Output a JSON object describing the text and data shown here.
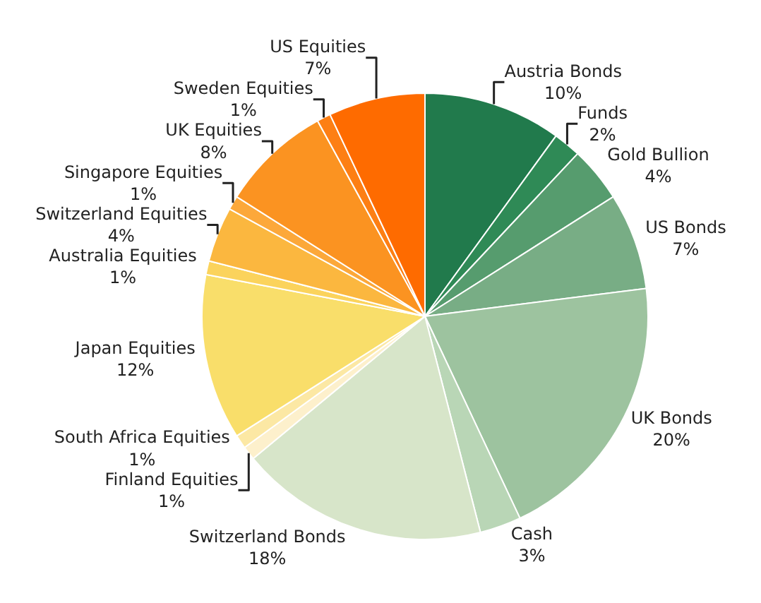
{
  "chart_data": {
    "type": "pie",
    "categories": [
      "Austria Bonds",
      "Funds",
      "Gold Bullion",
      "US Bonds",
      "UK Bonds",
      "Cash",
      "Switzerland Bonds",
      "Finland Equities",
      "South Africa Equities",
      "Japan Equities",
      "Australia Equities",
      "Switzerland Equities",
      "Singapore Equities",
      "UK Equities",
      "Sweden Equities",
      "US Equities"
    ],
    "values": [
      10,
      2,
      4,
      7,
      20,
      3,
      18,
      1,
      1,
      12,
      1,
      4,
      1,
      8,
      1,
      7
    ],
    "value_labels": [
      "10%",
      "2%",
      "4%",
      "7%",
      "20%",
      "3%",
      "18%",
      "1%",
      "1%",
      "12%",
      "1%",
      "4%",
      "1%",
      "8%",
      "1%",
      "7%"
    ],
    "colors": [
      "#217a4c",
      "#2f8a56",
      "#569c6e",
      "#78ad85",
      "#9dc39f",
      "#b9d6b6",
      "#d7e5c9",
      "#fdf0cc",
      "#fce8a4",
      "#f9de6a",
      "#fbd35c",
      "#fbb73f",
      "#fca83a",
      "#fb9321",
      "#fd7f14",
      "#fe6b00"
    ],
    "legend": false
  }
}
